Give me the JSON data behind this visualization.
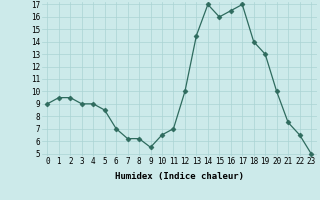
{
  "x": [
    0,
    1,
    2,
    3,
    4,
    5,
    6,
    7,
    8,
    9,
    10,
    11,
    12,
    13,
    14,
    15,
    16,
    17,
    18,
    19,
    20,
    21,
    22,
    23
  ],
  "y": [
    9,
    9.5,
    9.5,
    9,
    9,
    8.5,
    7,
    6.2,
    6.2,
    5.5,
    6.5,
    7,
    10,
    14.5,
    17,
    16,
    16.5,
    17,
    14,
    13,
    10,
    7.5,
    6.5,
    5
  ],
  "xlabel": "Humidex (Indice chaleur)",
  "ylim": [
    5,
    17
  ],
  "xlim": [
    -0.5,
    23.5
  ],
  "yticks": [
    5,
    6,
    7,
    8,
    9,
    10,
    11,
    12,
    13,
    14,
    15,
    16,
    17
  ],
  "xticks": [
    0,
    1,
    2,
    3,
    4,
    5,
    6,
    7,
    8,
    9,
    10,
    11,
    12,
    13,
    14,
    15,
    16,
    17,
    18,
    19,
    20,
    21,
    22,
    23
  ],
  "line_color": "#2e6b5e",
  "marker": "D",
  "marker_size": 2.5,
  "bg_color": "#cceaea",
  "grid_color": "#aad4d4",
  "label_fontsize": 6.5,
  "tick_fontsize": 5.5
}
